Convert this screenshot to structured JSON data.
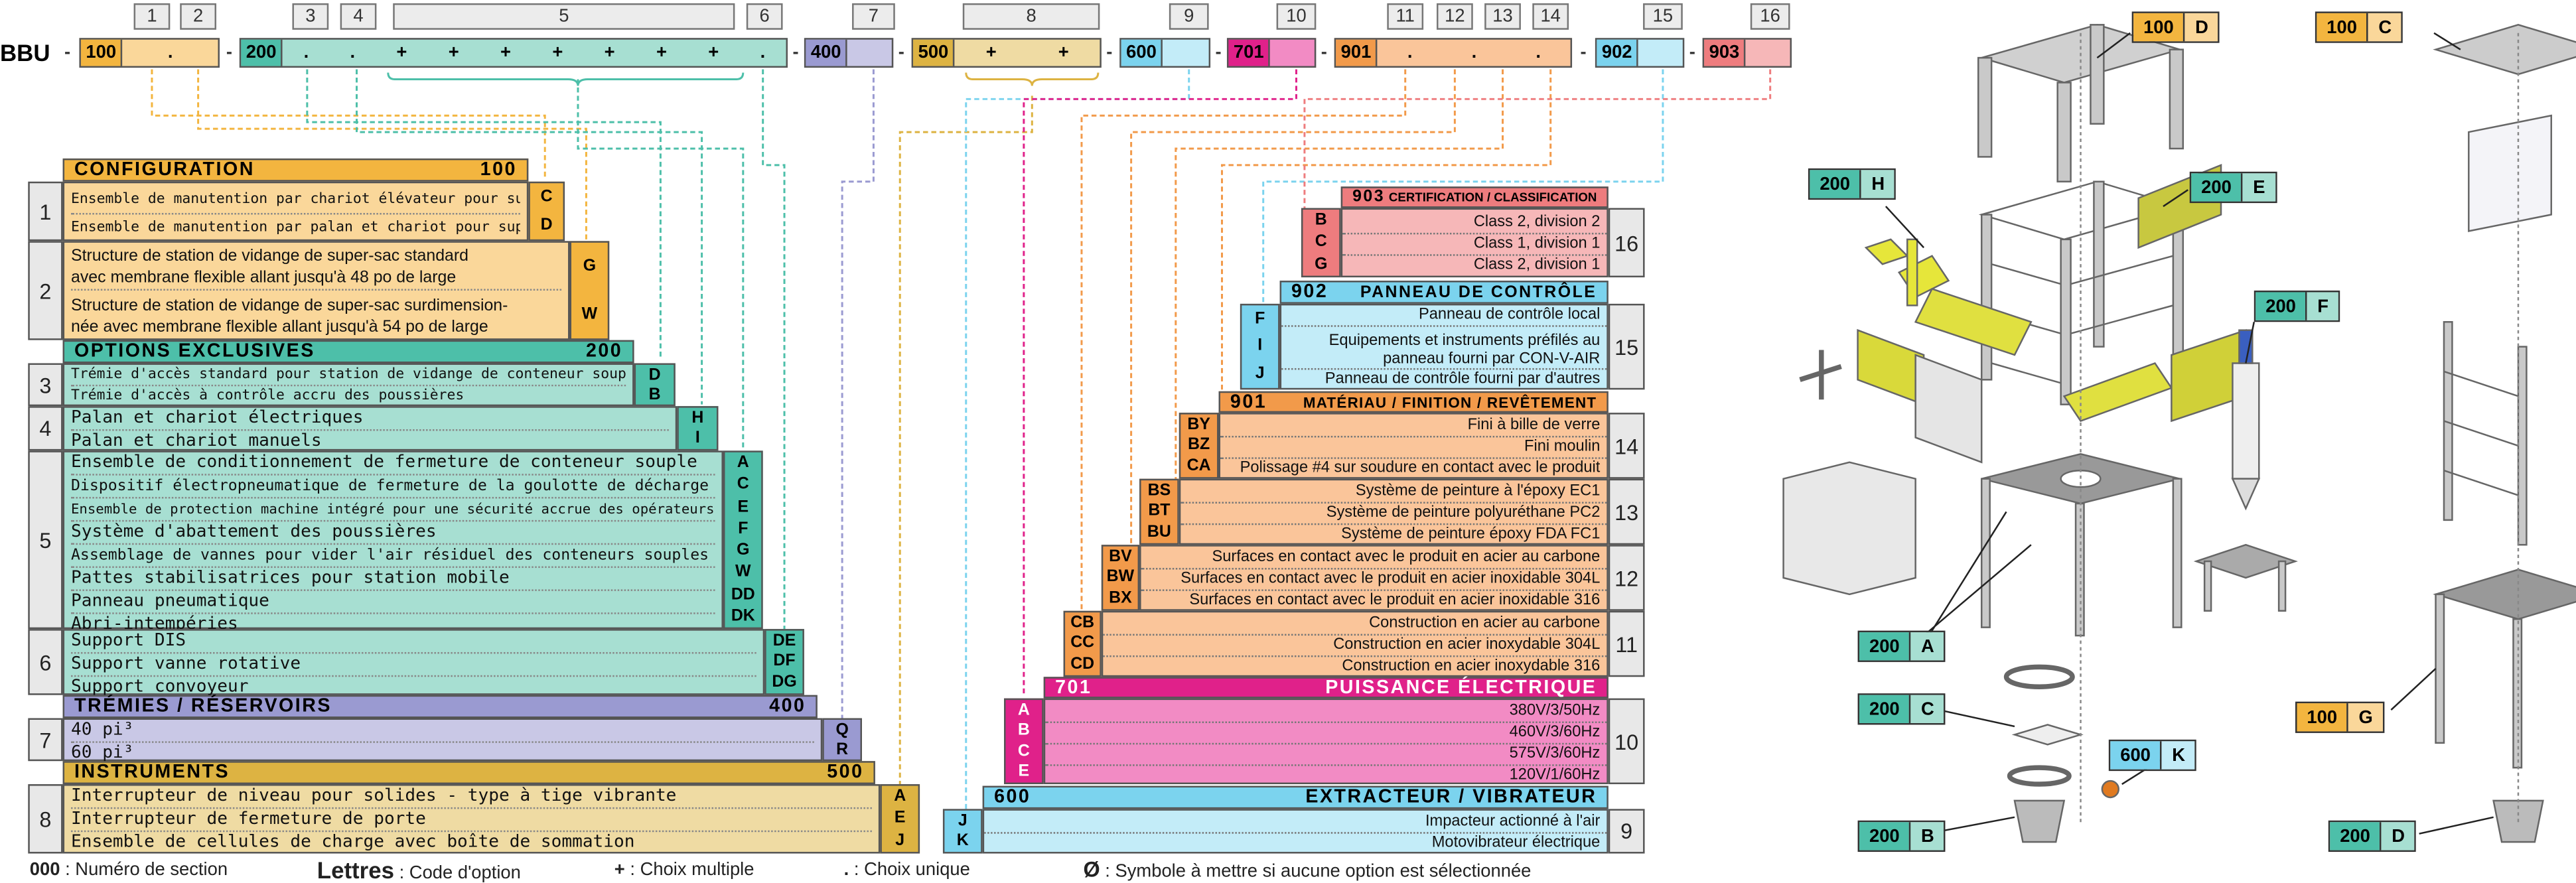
{
  "colors": {
    "orange": "#F3B53F",
    "lightorange": "#FAD79A",
    "teal": "#4DBFA9",
    "lightteal": "#A7DFD2",
    "lavender": "#9A9AD1",
    "lightlavender": "#C9C8E6",
    "mustard": "#DDB342",
    "lightmustard": "#EFDBA3",
    "sky": "#7BD3EE",
    "lightsky": "#C3ECF8",
    "magenta": "#E0218A",
    "lightmagenta": "#F28BC4",
    "peach": "#F29A4A",
    "lightpeach": "#FAC59A",
    "salmon": "#EE7C7E",
    "lightsalmon": "#F6B7B8"
  },
  "top": {
    "prefix": "BBU",
    "col_numbers": [
      "1",
      "2",
      "3",
      "4",
      "5",
      "6",
      "7",
      "8",
      "9",
      "10",
      "11",
      "12",
      "13",
      "14",
      "15",
      "16"
    ],
    "codes": {
      "c100": "100",
      "c200": "200",
      "c400": "400",
      "c500": "500",
      "c600": "600",
      "c701": "701",
      "c901": "901",
      "c902": "902",
      "c903": "903"
    },
    "sep": "-",
    "single": ".",
    "multi": "+"
  },
  "left": {
    "configuration": {
      "title": "CONFIGURATION",
      "code": "100",
      "row1": {
        "num": "1",
        "items": [
          "Ensemble de manutention par chariot élévateur pour super-sac",
          "Ensemble de manutention par palan et chariot pour super-sac"
        ],
        "letters": [
          "C",
          "D"
        ]
      },
      "row2": {
        "num": "2",
        "items": [
          "Structure de station de vidange de super-sac standard",
          "avec membrane flexible allant jusqu'à 48 po de large",
          "Structure de station de vidange de super-sac surdimension-",
          "née avec membrane flexible allant jusqu'à 54 po de large"
        ],
        "letters": [
          "G",
          "W"
        ]
      }
    },
    "options": {
      "title": "OPTIONS EXCLUSIVES",
      "code": "200",
      "row3": {
        "num": "3",
        "items": [
          "Trémie d'accès standard pour station de vidange de conteneur souple",
          "Trémie d'accès à contrôle accru des poussières"
        ],
        "letters": [
          "D",
          "B"
        ]
      },
      "row4": {
        "num": "4",
        "items": [
          "Palan et chariot électriques",
          "Palan et chariot manuels"
        ],
        "letters": [
          "H",
          "I"
        ]
      },
      "row5": {
        "num": "5",
        "items": [
          "Ensemble de conditionnement de fermeture de conteneur souple",
          "Dispositif électropneumatique de fermeture de la goulotte de décharge",
          "Ensemble de protection machine intégré pour une sécurité accrue des opérateurs",
          "Système d'abattement des poussières",
          "Assemblage de vannes pour vider l'air résiduel des conteneurs souples",
          "Pattes stabilisatrices pour station mobile",
          "Panneau pneumatique",
          "Abri-intempéries"
        ],
        "letters": [
          "A",
          "C",
          "E",
          "F",
          "G",
          "W",
          "DD",
          "DK"
        ]
      },
      "row6": {
        "num": "6",
        "items": [
          "Support DIS",
          "Support vanne rotative",
          "Support convoyeur"
        ],
        "letters": [
          "DE",
          "DF",
          "DG"
        ]
      }
    },
    "tremies": {
      "title": "TRÉMIES / RÉSERVOIRS",
      "code": "400",
      "row7": {
        "num": "7",
        "items": [
          "40 pi³",
          "60 pi³"
        ],
        "letters": [
          "Q",
          "R"
        ]
      }
    },
    "instruments": {
      "title": "INSTRUMENTS",
      "code": "500",
      "row8": {
        "num": "8",
        "items": [
          "Interrupteur de niveau pour solides - type à tige vibrante",
          "Interrupteur de fermeture de porte",
          "Ensemble de cellules de charge avec boîte de sommation"
        ],
        "letters": [
          "A",
          "E",
          "J"
        ]
      }
    }
  },
  "right": {
    "s903": {
      "title": "CERTIFICATION / CLASSIFICATION",
      "code": "903",
      "num": "16",
      "items": [
        "Class 2, division 2",
        "Class 1, division 1",
        "Class 2, division 1"
      ],
      "letters": [
        "B",
        "C",
        "G"
      ]
    },
    "s902": {
      "title": "PANNEAU DE CONTRÔLE",
      "code": "902",
      "num": "15",
      "items": [
        "Panneau de contrôle local",
        "Équipements et instruments préfilés au",
        "panneau fourni par CON-V-AIR",
        "Panneau de contrôle fourni par d'autres"
      ],
      "letters": [
        "F",
        "I",
        "J"
      ]
    },
    "s901": {
      "title": "MATÉRIAU / FINITION / REVÊTEMENT",
      "code": "901",
      "r14": {
        "num": "14",
        "items": [
          "Fini à bille de verre",
          "Fini moulin",
          "Polissage #4 sur soudure en contact avec le produit"
        ],
        "letters": [
          "BY",
          "BZ",
          "CA"
        ]
      },
      "r13": {
        "num": "13",
        "items": [
          "Système de peinture à l'époxy EC1",
          "Système de peinture polyuréthane PC2",
          "Système de peinture époxy FDA FC1"
        ],
        "letters": [
          "BS",
          "BT",
          "BU"
        ]
      },
      "r12": {
        "num": "12",
        "items": [
          "Surfaces en contact avec le produit en acier au carbone",
          "Surfaces en contact avec le produit en acier inoxidable 304L",
          "Surfaces en contact avec le produit en acier inoxidable 316"
        ],
        "letters": [
          "BV",
          "BW",
          "BX"
        ]
      },
      "r11": {
        "num": "11",
        "items": [
          "Construction en acier au carbone",
          "Construction en acier inoxydable 304L",
          "Construction en acier inoxydable 316"
        ],
        "letters": [
          "CB",
          "CC",
          "CD"
        ]
      }
    },
    "s701": {
      "title": "PUISSANCE ÉLECTRIQUE",
      "code": "701",
      "num": "10",
      "items": [
        "380V/3/50Hz",
        "460V/3/60Hz",
        "575V/3/60Hz",
        "120V/1/60Hz"
      ],
      "letters": [
        "A",
        "B",
        "C",
        "E"
      ]
    },
    "s600": {
      "title": "EXTRACTEUR / VIBRATEUR",
      "code": "600",
      "num": "9",
      "items": [
        "Impacteur actionné à l'air",
        "Motovibrateur électrique"
      ],
      "letters": [
        "J",
        "K"
      ]
    }
  },
  "legend": {
    "k1": "000",
    "v1": ": Numéro de section",
    "k2": "Lettres",
    "v2": ": Code d'option",
    "k3": "+",
    "v3": ": Choix multiple",
    "k4": ".",
    "v4": ": Choix unique",
    "k5": "Ø",
    "v5": ": Symbole à mettre si aucune option est sélectionnée"
  },
  "tags": [
    {
      "id": "t1",
      "code": "100",
      "letter": "D",
      "color": "#F3B53F",
      "color2": "#FAD79A"
    },
    {
      "id": "t2",
      "code": "100",
      "letter": "C",
      "color": "#F3B53F",
      "color2": "#FAD79A"
    },
    {
      "id": "t3",
      "code": "200",
      "letter": "H",
      "color": "#4DBFA9",
      "color2": "#A7DFD2"
    },
    {
      "id": "t4",
      "code": "200",
      "letter": "E",
      "color": "#4DBFA9",
      "color2": "#A7DFD2"
    },
    {
      "id": "t5",
      "code": "200",
      "letter": "F",
      "color": "#4DBFA9",
      "color2": "#A7DFD2"
    },
    {
      "id": "t6",
      "code": "200",
      "letter": "A",
      "color": "#4DBFA9",
      "color2": "#A7DFD2"
    },
    {
      "id": "t7",
      "code": "200",
      "letter": "C",
      "color": "#4DBFA9",
      "color2": "#A7DFD2"
    },
    {
      "id": "t8",
      "code": "600",
      "letter": "K",
      "color": "#7BD3EE",
      "color2": "#C3ECF8"
    },
    {
      "id": "t9",
      "code": "200",
      "letter": "B",
      "color": "#4DBFA9",
      "color2": "#A7DFD2"
    },
    {
      "id": "t10",
      "code": "100",
      "letter": "G",
      "color": "#F3B53F",
      "color2": "#FAD79A"
    },
    {
      "id": "t11",
      "code": "200",
      "letter": "D",
      "color": "#4DBFA9",
      "color2": "#A7DFD2"
    }
  ]
}
